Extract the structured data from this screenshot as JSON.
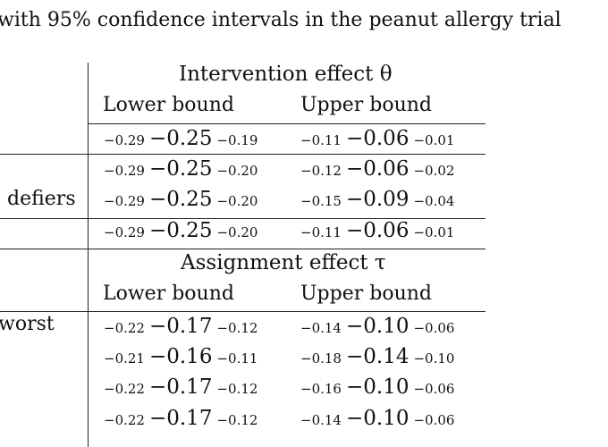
{
  "caption": "with 95% confidence intervals in the peanut allergy trial",
  "panels": [
    {
      "header": "Intervention effect θ",
      "lower_label": "Lower bound",
      "upper_label": "Upper bound",
      "rows": [
        {
          "label": "",
          "lower": {
            "lo": "−0.29",
            "est": "−0.25",
            "hi": "−0.19"
          },
          "upper": {
            "lo": "−0.11",
            "est": "−0.06",
            "hi": "−0.01"
          }
        },
        {
          "label": "",
          "lower": {
            "lo": "−0.29",
            "est": "−0.25",
            "hi": "−0.20"
          },
          "upper": {
            "lo": "−0.12",
            "est": "−0.06",
            "hi": "−0.02"
          }
        },
        {
          "label": "defiers",
          "lower": {
            "lo": "−0.29",
            "est": "−0.25",
            "hi": "−0.20"
          },
          "upper": {
            "lo": "−0.15",
            "est": "−0.09",
            "hi": "−0.04"
          }
        },
        {
          "label": "",
          "lower": {
            "lo": "−0.29",
            "est": "−0.25",
            "hi": "−0.20"
          },
          "upper": {
            "lo": "−0.11",
            "est": "−0.06",
            "hi": "−0.01"
          }
        }
      ]
    },
    {
      "header": "Assignment effect τ",
      "lower_label": "Lower bound",
      "upper_label": "Upper bound",
      "rows": [
        {
          "label": "worst",
          "lower": {
            "lo": "−0.22",
            "est": "−0.17",
            "hi": "−0.12"
          },
          "upper": {
            "lo": "−0.14",
            "est": "−0.10",
            "hi": "−0.06"
          }
        },
        {
          "label": "",
          "lower": {
            "lo": "−0.21",
            "est": "−0.16",
            "hi": "−0.11"
          },
          "upper": {
            "lo": "−0.18",
            "est": "−0.14",
            "hi": "−0.10"
          }
        },
        {
          "label": "",
          "lower": {
            "lo": "−0.22",
            "est": "−0.17",
            "hi": "−0.12"
          },
          "upper": {
            "lo": "−0.16",
            "est": "−0.10",
            "hi": "−0.06"
          }
        },
        {
          "label": "",
          "lower": {
            "lo": "−0.22",
            "est": "−0.17",
            "hi": "−0.12"
          },
          "upper": {
            "lo": "−0.14",
            "est": "−0.10",
            "hi": "−0.06"
          }
        }
      ]
    }
  ]
}
